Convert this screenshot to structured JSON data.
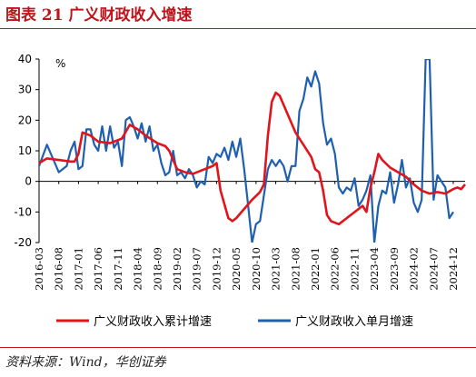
{
  "figure": {
    "title": "图表 21   广义财政收入增速",
    "source": "资料来源：Wind，华创证券",
    "colors": {
      "accent": "#c0141c",
      "series1": "#e0141c",
      "series2": "#1f5fb0",
      "axis": "#000000"
    }
  },
  "chart_data": {
    "type": "line",
    "ylabel": "%",
    "ylim": [
      -20,
      40
    ],
    "yticks": [
      -20,
      -10,
      0,
      10,
      20,
      30,
      40
    ],
    "grid": false,
    "legend": "bottom",
    "x_start": "2016-03",
    "x_end": "2025-03",
    "xtick_labels": [
      "2016-03",
      "2016-08",
      "2017-01",
      "2017-06",
      "2017-11",
      "2018-04",
      "2018-09",
      "2019-02",
      "2019-07",
      "2019-12",
      "2020-05",
      "2020-10",
      "2021-03",
      "2021-08",
      "2022-01",
      "2022-06",
      "2022-11",
      "2023-04",
      "2023-09",
      "2024-02",
      "2024-07",
      "2024-12"
    ],
    "series": [
      {
        "name": "广义财政收入累计增速",
        "color": "#e0141c",
        "points": [
          [
            "2016-03",
            6
          ],
          [
            "2016-05",
            7.5
          ],
          [
            "2016-08",
            7
          ],
          [
            "2016-11",
            6.5
          ],
          [
            "2016-12",
            6.5
          ],
          [
            "2017-01",
            9
          ],
          [
            "2017-02",
            16
          ],
          [
            "2017-04",
            15
          ],
          [
            "2017-06",
            13
          ],
          [
            "2017-09",
            12.5
          ],
          [
            "2017-11",
            13.5
          ],
          [
            "2017-12",
            14
          ],
          [
            "2018-02",
            18.5
          ],
          [
            "2018-04",
            17
          ],
          [
            "2018-06",
            15
          ],
          [
            "2018-09",
            12.5
          ],
          [
            "2018-11",
            11.5
          ],
          [
            "2018-12",
            10
          ],
          [
            "2019-02",
            4
          ],
          [
            "2019-04",
            3
          ],
          [
            "2019-06",
            2.5
          ],
          [
            "2019-08",
            3.5
          ],
          [
            "2019-10",
            4.5
          ],
          [
            "2019-11",
            5
          ],
          [
            "2019-12",
            6
          ],
          [
            "2020-01",
            -3
          ],
          [
            "2020-03",
            -12
          ],
          [
            "2020-04",
            -13
          ],
          [
            "2020-05",
            -12
          ],
          [
            "2020-07",
            -9
          ],
          [
            "2020-09",
            -6
          ],
          [
            "2020-11",
            -3.5
          ],
          [
            "2020-12",
            -1
          ],
          [
            "2021-01",
            15
          ],
          [
            "2021-02",
            26
          ],
          [
            "2021-03",
            29
          ],
          [
            "2021-04",
            28
          ],
          [
            "2021-06",
            22
          ],
          [
            "2021-08",
            16
          ],
          [
            "2021-10",
            12
          ],
          [
            "2021-12",
            8
          ],
          [
            "2022-01",
            4
          ],
          [
            "2022-02",
            3
          ],
          [
            "2022-03",
            -3
          ],
          [
            "2022-04",
            -11
          ],
          [
            "2022-05",
            -13
          ],
          [
            "2022-07",
            -14
          ],
          [
            "2022-09",
            -12
          ],
          [
            "2022-12",
            -9
          ],
          [
            "2023-01",
            -8
          ],
          [
            "2023-02",
            -10
          ],
          [
            "2023-03",
            -2
          ],
          [
            "2023-04",
            3
          ],
          [
            "2023-05",
            9
          ],
          [
            "2023-06",
            7
          ],
          [
            "2023-08",
            4.5
          ],
          [
            "2023-10",
            3
          ],
          [
            "2023-12",
            1.5
          ],
          [
            "2024-02",
            -1
          ],
          [
            "2024-04",
            -3
          ],
          [
            "2024-06",
            -4
          ],
          [
            "2024-08",
            -3.5
          ],
          [
            "2024-10",
            -4
          ],
          [
            "2024-12",
            -2.5
          ],
          [
            "2025-01",
            -2
          ],
          [
            "2025-02",
            -2.5
          ],
          [
            "2025-03",
            -1
          ]
        ]
      },
      {
        "name": "广义财政收入单月增速",
        "color": "#1f5fb0",
        "points": [
          [
            "2016-03",
            5
          ],
          [
            "2016-05",
            12
          ],
          [
            "2016-07",
            6
          ],
          [
            "2016-08",
            3
          ],
          [
            "2016-10",
            5
          ],
          [
            "2016-11",
            10
          ],
          [
            "2016-12",
            13
          ],
          [
            "2017-01",
            4
          ],
          [
            "2017-02",
            5
          ],
          [
            "2017-03",
            17
          ],
          [
            "2017-04",
            17
          ],
          [
            "2017-05",
            12
          ],
          [
            "2017-06",
            10
          ],
          [
            "2017-07",
            18
          ],
          [
            "2017-08",
            10
          ],
          [
            "2017-09",
            18
          ],
          [
            "2017-10",
            11
          ],
          [
            "2017-11",
            13
          ],
          [
            "2017-12",
            5
          ],
          [
            "2018-01",
            20
          ],
          [
            "2018-02",
            21
          ],
          [
            "2018-03",
            18
          ],
          [
            "2018-04",
            14
          ],
          [
            "2018-05",
            19
          ],
          [
            "2018-06",
            13
          ],
          [
            "2018-07",
            18
          ],
          [
            "2018-08",
            10
          ],
          [
            "2018-09",
            12
          ],
          [
            "2018-10",
            6
          ],
          [
            "2018-11",
            2
          ],
          [
            "2018-12",
            3
          ],
          [
            "2019-01",
            10
          ],
          [
            "2019-02",
            2
          ],
          [
            "2019-03",
            3
          ],
          [
            "2019-04",
            1
          ],
          [
            "2019-05",
            4
          ],
          [
            "2019-06",
            2
          ],
          [
            "2019-07",
            -2
          ],
          [
            "2019-08",
            0
          ],
          [
            "2019-09",
            -1
          ],
          [
            "2019-10",
            8
          ],
          [
            "2019-11",
            6
          ],
          [
            "2019-12",
            9
          ],
          [
            "2020-01",
            8
          ],
          [
            "2020-02",
            11
          ],
          [
            "2020-03",
            7
          ],
          [
            "2020-04",
            13
          ],
          [
            "2020-05",
            8
          ],
          [
            "2020-06",
            14
          ],
          [
            "2020-07",
            4
          ],
          [
            "2020-08",
            -8
          ],
          [
            "2020-09",
            -20
          ],
          [
            "2020-10",
            -14
          ],
          [
            "2020-11",
            -13
          ],
          [
            "2021-01",
            4
          ],
          [
            "2021-02",
            7
          ],
          [
            "2021-03",
            5
          ],
          [
            "2021-04",
            7
          ],
          [
            "2021-05",
            5
          ],
          [
            "2021-06",
            0
          ],
          [
            "2021-07",
            5
          ],
          [
            "2021-08",
            5
          ],
          [
            "2021-09",
            23
          ],
          [
            "2021-10",
            27
          ],
          [
            "2021-11",
            34
          ],
          [
            "2021-12",
            31
          ],
          [
            "2022-01",
            36
          ],
          [
            "2022-02",
            32
          ],
          [
            "2022-03",
            19
          ],
          [
            "2022-04",
            12
          ],
          [
            "2022-05",
            14
          ],
          [
            "2022-06",
            9
          ],
          [
            "2022-07",
            -2
          ],
          [
            "2022-08",
            -4
          ],
          [
            "2022-09",
            -2
          ],
          [
            "2022-10",
            -3
          ],
          [
            "2022-11",
            1
          ],
          [
            "2022-12",
            -8
          ],
          [
            "2023-01",
            -6
          ],
          [
            "2023-02",
            -3
          ],
          [
            "2023-03",
            2
          ],
          [
            "2023-04",
            -20
          ],
          [
            "2023-05",
            -8
          ],
          [
            "2023-06",
            -3
          ],
          [
            "2023-07",
            -4
          ],
          [
            "2023-08",
            3
          ],
          [
            "2023-09",
            -7
          ],
          [
            "2023-10",
            -1
          ],
          [
            "2023-11",
            7
          ],
          [
            "2023-12",
            -2
          ],
          [
            "2024-01",
            1
          ],
          [
            "2024-02",
            -7
          ],
          [
            "2024-03",
            -10
          ],
          [
            "2024-04",
            -6
          ],
          [
            "2024-05",
            40
          ],
          [
            "2024-06",
            40
          ],
          [
            "2024-07",
            -6
          ],
          [
            "2024-08",
            2
          ],
          [
            "2024-09",
            0
          ],
          [
            "2024-10",
            -2
          ],
          [
            "2024-11",
            -12
          ],
          [
            "2024-12",
            -10
          ]
        ]
      }
    ]
  }
}
